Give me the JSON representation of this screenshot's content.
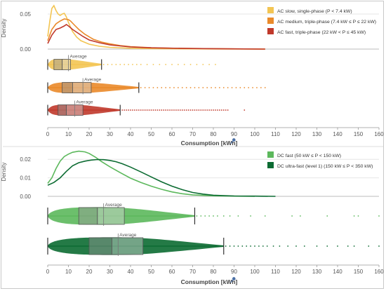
{
  "colors": {
    "ac_slow": "#f3c553",
    "ac_medium": "#ea8a2a",
    "ac_fast": "#c0392b",
    "dc_fast": "#5cb85c",
    "dc_ultra": "#0c6b32",
    "whisker": "#333333",
    "grid": "#e6e6e6"
  },
  "chart_data": [
    {
      "id": "ac",
      "type": "density+boxplot",
      "xlabel": "Consumption [kWh]",
      "ylabel": "Density",
      "xlim": [
        0,
        160
      ],
      "xticks": [
        0,
        10,
        20,
        30,
        40,
        50,
        60,
        70,
        80,
        90,
        100,
        110,
        120,
        130,
        140,
        150,
        160
      ],
      "ylim": [
        0,
        0.06
      ],
      "yticks": [
        {
          "value": 0,
          "label": "0.00"
        },
        {
          "value": 0.05,
          "label": "0.05"
        }
      ],
      "average_label": "Average",
      "legend_position": "top-right",
      "series": [
        {
          "name": "AC slow, single-phase (P < 7.4 kW)",
          "color_key": "ac_slow",
          "density": [
            [
              0,
              0.018
            ],
            [
              1,
              0.04
            ],
            [
              2,
              0.058
            ],
            [
              3,
              0.062
            ],
            [
              4,
              0.055
            ],
            [
              5,
              0.05
            ],
            [
              6,
              0.048
            ],
            [
              7,
              0.05
            ],
            [
              8,
              0.051
            ],
            [
              9,
              0.046
            ],
            [
              10,
              0.038
            ],
            [
              12,
              0.025
            ],
            [
              14,
              0.017
            ],
            [
              16,
              0.012
            ],
            [
              20,
              0.007
            ],
            [
              25,
              0.004
            ],
            [
              30,
              0.0025
            ],
            [
              40,
              0.0012
            ],
            [
              50,
              0.0007
            ],
            [
              70,
              0.0003
            ],
            [
              90,
              0.0001
            ],
            [
              105,
              0
            ]
          ],
          "box": {
            "whisker_low": 0,
            "q1": 3,
            "median": 7,
            "q3": 11,
            "whisker_high": 26,
            "average": 10
          },
          "outliers": [
            27,
            29,
            31,
            33,
            35,
            37,
            39,
            41,
            43,
            45,
            48,
            51,
            54,
            57,
            60,
            63,
            66,
            69,
            72,
            75,
            78,
            81
          ]
        },
        {
          "name": "AC medium, triple-phase (7.4 kW ≤ P ≤ 22 kW)",
          "color_key": "ac_medium",
          "density": [
            [
              0,
              0.012
            ],
            [
              2,
              0.028
            ],
            [
              4,
              0.036
            ],
            [
              6,
              0.04
            ],
            [
              8,
              0.043
            ],
            [
              10,
              0.042
            ],
            [
              11,
              0.04
            ],
            [
              13,
              0.034
            ],
            [
              15,
              0.028
            ],
            [
              18,
              0.021
            ],
            [
              22,
              0.014
            ],
            [
              26,
              0.01
            ],
            [
              30,
              0.0075
            ],
            [
              35,
              0.005
            ],
            [
              40,
              0.0035
            ],
            [
              50,
              0.002
            ],
            [
              60,
              0.0012
            ],
            [
              80,
              0.0006
            ],
            [
              105,
              0
            ]
          ],
          "box": {
            "whisker_low": 0,
            "q1": 7,
            "median": 12,
            "q3": 21,
            "whisker_high": 44,
            "average": 17
          },
          "outliers": [
            45,
            47,
            49,
            51,
            53,
            55,
            57,
            59,
            61,
            63,
            65,
            67,
            69,
            71,
            73,
            75,
            77,
            79,
            81,
            83,
            85,
            87,
            89,
            91,
            93,
            95,
            97,
            99,
            101,
            103,
            105
          ]
        },
        {
          "name": "AC fast, triple-phase (22 kW < P ≤ 45 kW)",
          "color_key": "ac_fast",
          "density": [
            [
              0,
              0.008
            ],
            [
              2,
              0.02
            ],
            [
              4,
              0.028
            ],
            [
              6,
              0.03
            ],
            [
              8,
              0.033
            ],
            [
              9,
              0.035
            ],
            [
              10,
              0.033
            ],
            [
              12,
              0.028
            ],
            [
              14,
              0.024
            ],
            [
              17,
              0.018
            ],
            [
              20,
              0.013
            ],
            [
              25,
              0.009
            ],
            [
              30,
              0.006
            ],
            [
              40,
              0.003
            ],
            [
              50,
              0.0018
            ],
            [
              70,
              0.0008
            ],
            [
              90,
              0.0003
            ],
            [
              105,
              0
            ]
          ],
          "box": {
            "whisker_low": 0,
            "q1": 5,
            "median": 9,
            "q3": 17,
            "whisker_high": 35,
            "average": 13
          },
          "outliers": [
            36,
            37,
            38,
            39,
            40,
            41,
            42,
            43,
            44,
            45,
            46,
            47,
            48,
            49,
            50,
            51,
            52,
            53,
            54,
            55,
            56,
            57,
            58,
            59,
            60,
            61,
            62,
            63,
            64,
            65,
            66,
            67,
            68,
            69,
            70,
            71,
            72,
            73,
            74,
            75,
            76,
            77,
            78,
            79,
            80,
            81,
            82,
            83,
            84,
            85,
            86,
            87,
            95
          ]
        }
      ]
    },
    {
      "id": "dc",
      "type": "density+boxplot",
      "xlabel": "Consumption [kWh]",
      "ylabel": "Density",
      "xlim": [
        0,
        160
      ],
      "xticks": [
        0,
        10,
        20,
        30,
        40,
        50,
        60,
        70,
        80,
        90,
        100,
        110,
        120,
        130,
        140,
        150,
        160
      ],
      "ylim": [
        0,
        0.025
      ],
      "yticks": [
        {
          "value": 0,
          "label": "0.00"
        },
        {
          "value": 0.01,
          "label": "0.01"
        },
        {
          "value": 0.02,
          "label": "0.02"
        }
      ],
      "average_label": "Average",
      "legend_position": "top-right",
      "series": [
        {
          "name": "DC fast (50 kW ≤ P < 150 kW)",
          "color_key": "dc_fast",
          "density": [
            [
              0,
              0.007
            ],
            [
              2,
              0.01
            ],
            [
              4,
              0.015
            ],
            [
              6,
              0.019
            ],
            [
              8,
              0.0215
            ],
            [
              10,
              0.0228
            ],
            [
              12,
              0.0238
            ],
            [
              15,
              0.0244
            ],
            [
              18,
              0.024
            ],
            [
              20,
              0.0232
            ],
            [
              23,
              0.0212
            ],
            [
              26,
              0.0188
            ],
            [
              30,
              0.016
            ],
            [
              35,
              0.0128
            ],
            [
              40,
              0.0098
            ],
            [
              45,
              0.0075
            ],
            [
              50,
              0.0055
            ],
            [
              55,
              0.0038
            ],
            [
              60,
              0.0024
            ],
            [
              65,
              0.0014
            ],
            [
              70,
              0.0008
            ],
            [
              80,
              0.0003
            ],
            [
              90,
              0.0001
            ],
            [
              100,
              0
            ]
          ],
          "box": {
            "whisker_low": 0,
            "q1": 15,
            "median": 24,
            "q3": 37,
            "whisker_high": 71,
            "average": 27
          },
          "outliers": [
            72,
            74,
            76,
            78,
            80,
            82,
            85,
            88,
            92,
            98,
            105,
            118,
            122,
            135,
            148,
            150,
            160
          ]
        },
        {
          "name": "DC ultra-fast (level 1) (150 kW ≤ P < 350 kW)",
          "color_key": "dc_ultra",
          "density": [
            [
              0,
              0.006
            ],
            [
              3,
              0.0075
            ],
            [
              6,
              0.01
            ],
            [
              9,
              0.0135
            ],
            [
              12,
              0.0165
            ],
            [
              15,
              0.0182
            ],
            [
              18,
              0.019
            ],
            [
              21,
              0.0196
            ],
            [
              24,
              0.0199
            ],
            [
              27,
              0.0198
            ],
            [
              30,
              0.0194
            ],
            [
              33,
              0.0187
            ],
            [
              36,
              0.0176
            ],
            [
              40,
              0.0158
            ],
            [
              45,
              0.0132
            ],
            [
              50,
              0.0105
            ],
            [
              55,
              0.0078
            ],
            [
              60,
              0.0055
            ],
            [
              65,
              0.0036
            ],
            [
              70,
              0.0021
            ],
            [
              75,
              0.0012
            ],
            [
              80,
              0.0006
            ],
            [
              90,
              0.0002
            ],
            [
              100,
              0.0001
            ],
            [
              110,
              0
            ]
          ],
          "box": {
            "whisker_low": 0,
            "q1": 20,
            "median": 31,
            "q3": 46,
            "whisker_high": 85,
            "average": 34
          },
          "outliers": [
            86,
            88,
            90,
            92,
            94,
            96,
            98,
            100,
            102,
            104,
            106,
            109,
            112,
            116,
            120,
            124,
            130,
            135,
            140,
            145,
            148,
            155,
            160
          ]
        }
      ]
    }
  ]
}
